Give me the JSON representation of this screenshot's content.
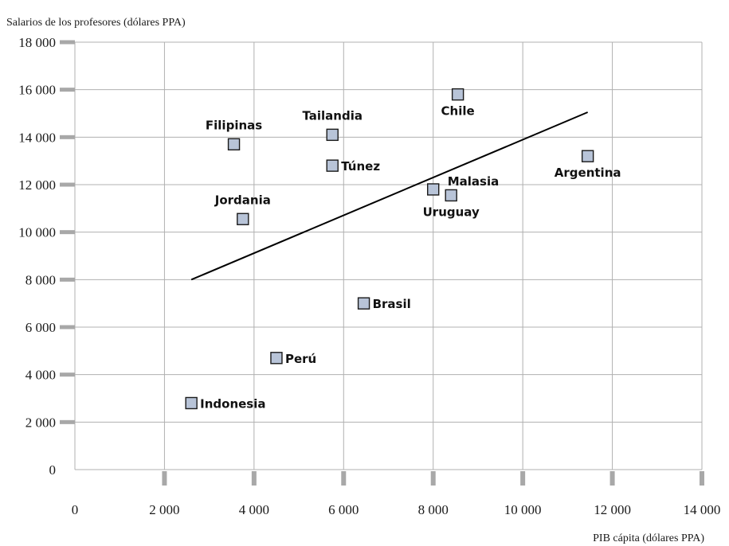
{
  "chart_data": {
    "type": "scatter",
    "xlabel": "PIB cápita (dólares PPA)",
    "ylabel": "Salarios de los profesores (dólares PPA)",
    "xlim": [
      0,
      14000
    ],
    "ylim": [
      0,
      18000
    ],
    "x_ticks": [
      {
        "value": 0,
        "label": "0"
      },
      {
        "value": 2000,
        "label": "2 000"
      },
      {
        "value": 4000,
        "label": "4 000"
      },
      {
        "value": 6000,
        "label": "6 000"
      },
      {
        "value": 8000,
        "label": "8 000"
      },
      {
        "value": 10000,
        "label": "10 000"
      },
      {
        "value": 12000,
        "label": "12 000"
      },
      {
        "value": 14000,
        "label": "14 000"
      }
    ],
    "y_ticks": [
      {
        "value": 0,
        "label": "0"
      },
      {
        "value": 2000,
        "label": "2 000"
      },
      {
        "value": 4000,
        "label": "4 000"
      },
      {
        "value": 6000,
        "label": "6 000"
      },
      {
        "value": 8000,
        "label": "8 000"
      },
      {
        "value": 10000,
        "label": "10 000"
      },
      {
        "value": 12000,
        "label": "12 000"
      },
      {
        "value": 14000,
        "label": "14 000"
      },
      {
        "value": 16000,
        "label": "16 000"
      },
      {
        "value": 18000,
        "label": "18 000"
      }
    ],
    "grid": "vertical",
    "points": [
      {
        "label": "Indonesia",
        "x": 2600,
        "y": 2800,
        "label_pos": "right"
      },
      {
        "label": "Jordania",
        "x": 3750,
        "y": 10550,
        "label_pos": "above"
      },
      {
        "label": "Filipinas",
        "x": 3550,
        "y": 13700,
        "label_pos": "above"
      },
      {
        "label": "Perú",
        "x": 4500,
        "y": 4700,
        "label_pos": "right"
      },
      {
        "label": "Tailandia",
        "x": 5750,
        "y": 14100,
        "label_pos": "above"
      },
      {
        "label": "Túnez",
        "x": 5750,
        "y": 12800,
        "label_pos": "right"
      },
      {
        "label": "Brasil",
        "x": 6450,
        "y": 7000,
        "label_pos": "right"
      },
      {
        "label": "Malasia",
        "x": 8000,
        "y": 11800,
        "label_pos": "above-right"
      },
      {
        "label": "Uruguay",
        "x": 8400,
        "y": 11550,
        "label_pos": "below"
      },
      {
        "label": "Chile",
        "x": 8550,
        "y": 15800,
        "label_pos": "below"
      },
      {
        "label": "Argentina",
        "x": 11450,
        "y": 13200,
        "label_pos": "below"
      }
    ],
    "trend_line": {
      "x1": 2600,
      "y1": 8000,
      "x2": 11450,
      "y2": 15050
    },
    "colors": {
      "marker_fill": "#b8c4d8",
      "marker_stroke": "#1a1a1a",
      "grid": "#b0b0b0",
      "tick_marks": "#a8a8a8",
      "line": "#000000"
    }
  }
}
